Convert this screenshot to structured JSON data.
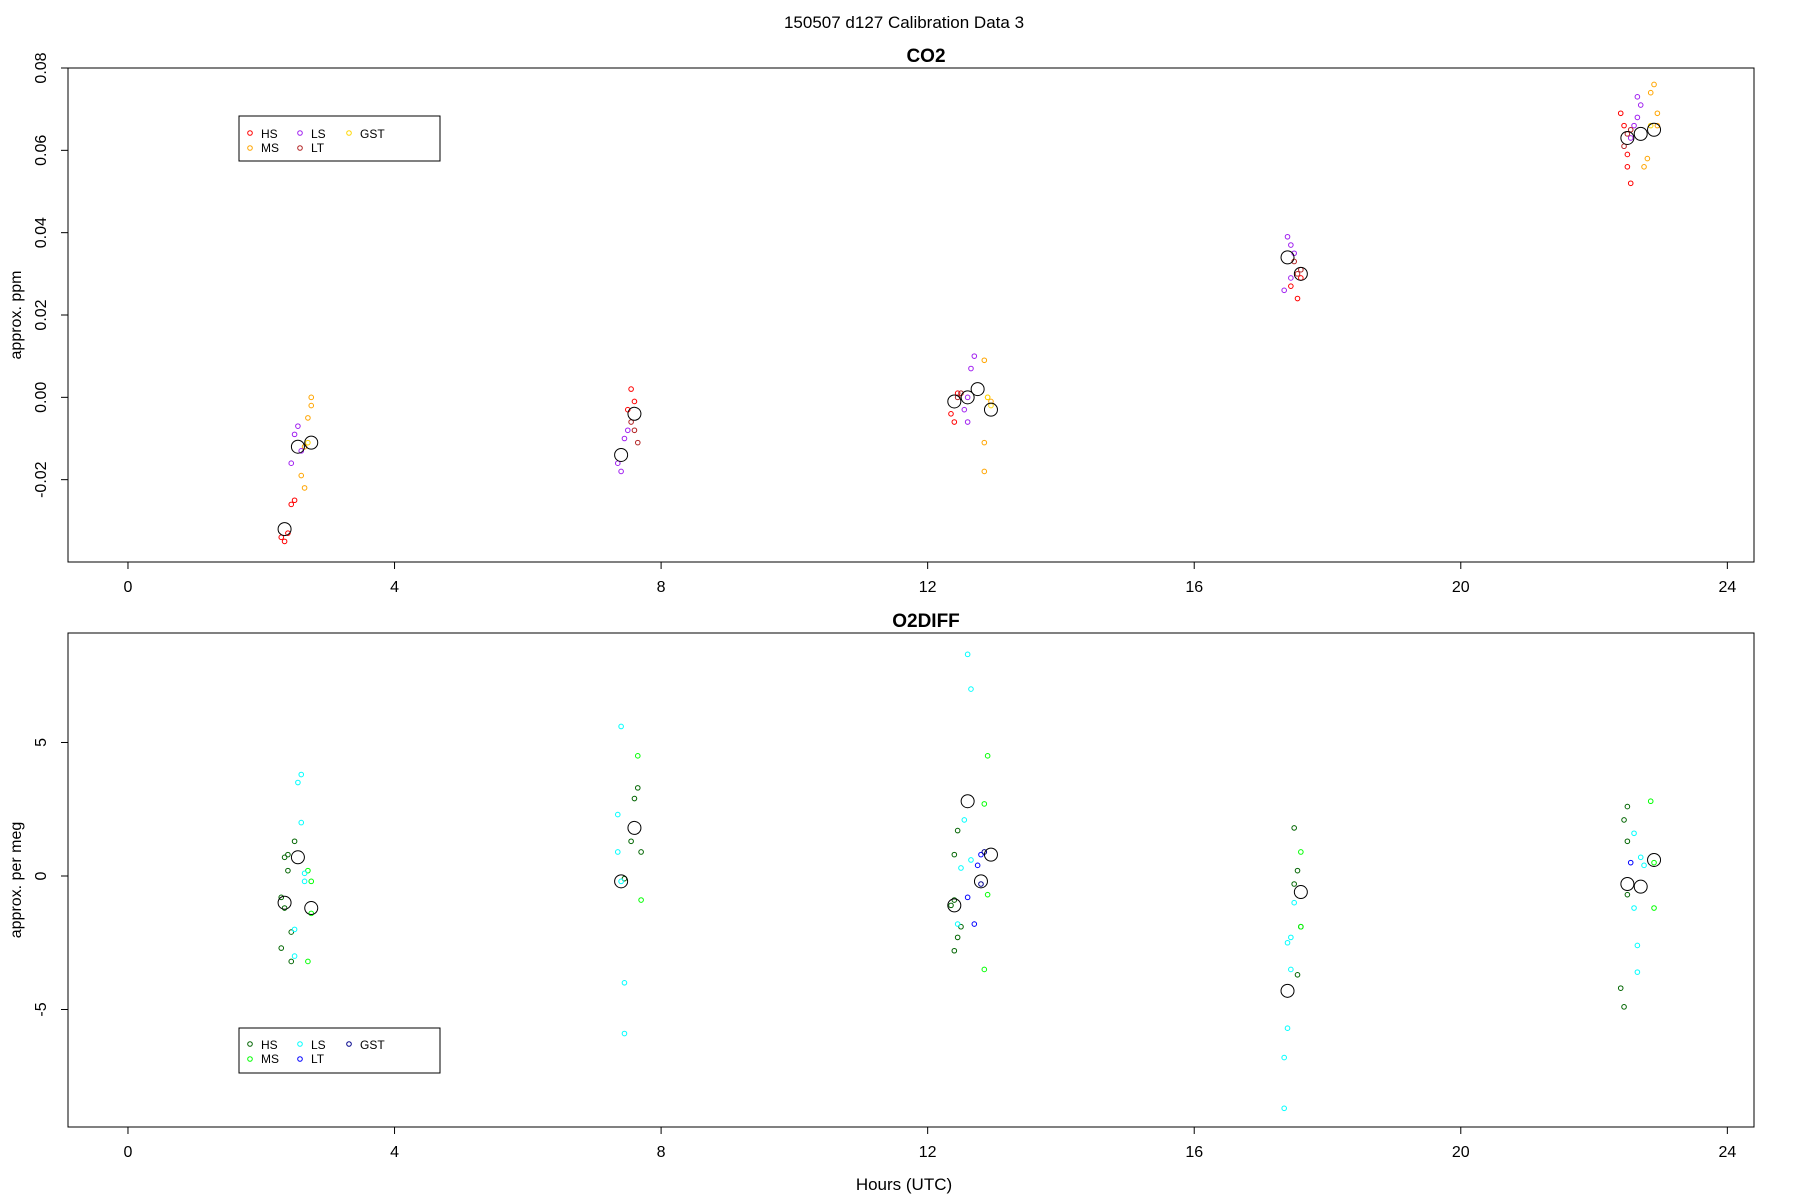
{
  "figure": {
    "title": "150507   d127   Calibration Data 3",
    "xlabel": "Hours (UTC)"
  },
  "colors": {
    "HS_co2": "#ff0000",
    "MS_co2": "#ffa500",
    "LS_co2": "#a020f0",
    "LT_co2": "#b22222",
    "GST_co2": "#ffd700",
    "HS_o2": "#006400",
    "MS_o2": "#00ff00",
    "LS_o2": "#00ffff",
    "LT_o2": "#0000ff",
    "GST_o2": "#00008b",
    "mean": "#000000"
  },
  "chart_data": [
    {
      "type": "scatter",
      "title": "CO2",
      "xlabel": "",
      "ylabel": "approx. ppm",
      "xlim": [
        -0.9,
        24.4
      ],
      "ylim": [
        -0.04,
        0.08
      ],
      "xticks": [
        0,
        4,
        8,
        12,
        16,
        20,
        24
      ],
      "yticks": [
        -0.02,
        0.0,
        0.02,
        0.04,
        0.06,
        0.08
      ],
      "ytick_labels": [
        "-0.02",
        "0.00",
        "0.02",
        "0.04",
        "0.06",
        "0.08"
      ],
      "legend": {
        "placement": "top-left",
        "entries": [
          "HS",
          "MS",
          "LS",
          "LT",
          "GST"
        ]
      },
      "series": [
        {
          "name": "HS",
          "color_key": "HS_co2",
          "points": [
            [
              2.3,
              -0.034
            ],
            [
              2.35,
              -0.035
            ],
            [
              2.4,
              -0.033
            ],
            [
              2.45,
              -0.026
            ],
            [
              2.5,
              -0.025
            ],
            [
              7.5,
              -0.003
            ],
            [
              7.55,
              0.002
            ],
            [
              7.6,
              -0.001
            ],
            [
              12.35,
              -0.004
            ],
            [
              12.4,
              -0.006
            ],
            [
              12.45,
              0.001
            ],
            [
              17.45,
              0.027
            ],
            [
              17.55,
              0.024
            ],
            [
              17.6,
              0.029
            ],
            [
              22.4,
              0.069
            ],
            [
              22.45,
              0.066
            ],
            [
              22.5,
              0.059
            ],
            [
              22.5,
              0.056
            ],
            [
              22.55,
              0.052
            ]
          ]
        },
        {
          "name": "MS",
          "color_key": "MS_co2",
          "points": [
            [
              2.6,
              -0.019
            ],
            [
              2.65,
              -0.022
            ],
            [
              2.65,
              -0.012
            ],
            [
              2.7,
              -0.005
            ],
            [
              2.75,
              -0.002
            ],
            [
              2.75,
              0.0
            ],
            [
              12.85,
              0.009
            ],
            [
              12.85,
              -0.011
            ],
            [
              12.85,
              -0.018
            ],
            [
              12.9,
              0.0
            ],
            [
              12.95,
              -0.001
            ],
            [
              22.75,
              0.056
            ],
            [
              22.8,
              0.058
            ],
            [
              22.85,
              0.074
            ],
            [
              22.9,
              0.076
            ],
            [
              22.95,
              0.066
            ],
            [
              22.95,
              0.069
            ]
          ]
        },
        {
          "name": "LS",
          "color_key": "LS_co2",
          "points": [
            [
              2.45,
              -0.016
            ],
            [
              2.5,
              -0.009
            ],
            [
              2.55,
              -0.007
            ],
            [
              2.6,
              -0.013
            ],
            [
              7.35,
              -0.016
            ],
            [
              7.4,
              -0.018
            ],
            [
              7.45,
              -0.01
            ],
            [
              7.5,
              -0.008
            ],
            [
              12.55,
              -0.003
            ],
            [
              12.6,
              0.0
            ],
            [
              12.65,
              0.007
            ],
            [
              12.7,
              0.01
            ],
            [
              12.6,
              -0.006
            ],
            [
              17.35,
              0.026
            ],
            [
              17.4,
              0.039
            ],
            [
              17.45,
              0.037
            ],
            [
              17.5,
              0.035
            ],
            [
              17.45,
              0.029
            ],
            [
              22.55,
              0.063
            ],
            [
              22.6,
              0.066
            ],
            [
              22.65,
              0.073
            ],
            [
              22.7,
              0.071
            ],
            [
              22.65,
              0.068
            ]
          ]
        },
        {
          "name": "LT",
          "color_key": "LT_co2",
          "points": [
            [
              7.55,
              -0.006
            ],
            [
              7.6,
              -0.008
            ],
            [
              7.65,
              -0.011
            ],
            [
              12.45,
              0.0
            ],
            [
              12.5,
              0.001
            ],
            [
              17.5,
              0.033
            ],
            [
              17.55,
              0.03
            ],
            [
              17.6,
              0.031
            ],
            [
              22.45,
              0.061
            ],
            [
              22.5,
              0.064
            ],
            [
              22.55,
              0.065
            ]
          ]
        },
        {
          "name": "GST",
          "color_key": "GST_co2",
          "points": [
            [
              2.7,
              -0.011
            ],
            [
              12.9,
              0.0
            ],
            [
              12.95,
              -0.002
            ],
            [
              22.85,
              0.066
            ]
          ]
        }
      ],
      "means": [
        [
          2.35,
          -0.032
        ],
        [
          2.55,
          -0.012
        ],
        [
          2.75,
          -0.011
        ],
        [
          7.4,
          -0.014
        ],
        [
          7.6,
          -0.004
        ],
        [
          12.4,
          -0.001
        ],
        [
          12.6,
          0.0
        ],
        [
          12.75,
          0.002
        ],
        [
          12.95,
          -0.003
        ],
        [
          17.4,
          0.034
        ],
        [
          17.6,
          0.03
        ],
        [
          22.5,
          0.063
        ],
        [
          22.7,
          0.064
        ],
        [
          22.9,
          0.065
        ]
      ]
    },
    {
      "type": "scatter",
      "title": "O2DIFF",
      "xlabel": "Hours (UTC)",
      "ylabel": "approx. per meg",
      "xlim": [
        -0.9,
        24.4
      ],
      "ylim": [
        -9.4,
        9.1
      ],
      "xticks": [
        0,
        4,
        8,
        12,
        16,
        20,
        24
      ],
      "yticks": [
        -5,
        0,
        5
      ],
      "ytick_labels": [
        "-5",
        "0",
        "5"
      ],
      "legend": {
        "placement": "bottom-left",
        "entries": [
          "HS",
          "MS",
          "LS",
          "LT",
          "GST"
        ]
      },
      "series": [
        {
          "name": "HS",
          "color_key": "HS_o2",
          "points": [
            [
              2.3,
              -0.8
            ],
            [
              2.35,
              -1.2
            ],
            [
              2.35,
              0.7
            ],
            [
              2.4,
              0.8
            ],
            [
              2.4,
              0.2
            ],
            [
              2.45,
              -2.1
            ],
            [
              2.45,
              -3.2
            ],
            [
              2.5,
              1.3
            ],
            [
              2.3,
              -2.7
            ],
            [
              7.45,
              -0.1
            ],
            [
              7.55,
              1.3
            ],
            [
              7.6,
              2.9
            ],
            [
              7.65,
              3.3
            ],
            [
              7.7,
              0.9
            ],
            [
              12.35,
              -1.1
            ],
            [
              12.4,
              -2.8
            ],
            [
              12.4,
              -0.9
            ],
            [
              12.45,
              -2.3
            ],
            [
              12.5,
              -1.9
            ],
            [
              12.45,
              1.7
            ],
            [
              12.4,
              0.8
            ],
            [
              17.5,
              1.8
            ],
            [
              17.55,
              0.2
            ],
            [
              17.5,
              -0.3
            ],
            [
              17.55,
              -3.7
            ],
            [
              17.6,
              -1.9
            ],
            [
              22.4,
              -4.2
            ],
            [
              22.45,
              -4.9
            ],
            [
              22.45,
              2.1
            ],
            [
              22.5,
              2.6
            ],
            [
              22.5,
              1.3
            ],
            [
              22.5,
              -0.7
            ]
          ]
        },
        {
          "name": "MS",
          "color_key": "MS_o2",
          "points": [
            [
              2.7,
              0.2
            ],
            [
              2.75,
              -1.4
            ],
            [
              2.7,
              -3.2
            ],
            [
              2.75,
              -0.2
            ],
            [
              7.65,
              4.5
            ],
            [
              7.7,
              -0.9
            ],
            [
              12.85,
              2.7
            ],
            [
              12.9,
              4.5
            ],
            [
              12.85,
              -3.5
            ],
            [
              12.9,
              -0.7
            ],
            [
              17.6,
              0.9
            ],
            [
              17.6,
              -1.9
            ],
            [
              22.85,
              2.8
            ],
            [
              22.9,
              -1.2
            ],
            [
              22.9,
              0.5
            ]
          ]
        },
        {
          "name": "LS",
          "color_key": "LS_o2",
          "points": [
            [
              2.55,
              3.5
            ],
            [
              2.6,
              3.8
            ],
            [
              2.6,
              2.0
            ],
            [
              2.65,
              0.1
            ],
            [
              2.65,
              -0.2
            ],
            [
              2.5,
              -2.0
            ],
            [
              2.5,
              -3.0
            ],
            [
              7.35,
              0.9
            ],
            [
              7.35,
              2.3
            ],
            [
              7.4,
              5.6
            ],
            [
              7.45,
              -4.0
            ],
            [
              7.45,
              -5.9
            ],
            [
              7.4,
              -0.2
            ],
            [
              12.6,
              8.3
            ],
            [
              12.65,
              7.0
            ],
            [
              12.55,
              2.1
            ],
            [
              12.5,
              0.3
            ],
            [
              12.45,
              -1.8
            ],
            [
              12.65,
              0.6
            ],
            [
              17.35,
              -6.8
            ],
            [
              17.35,
              -8.7
            ],
            [
              17.4,
              -5.7
            ],
            [
              17.4,
              -2.5
            ],
            [
              17.45,
              -2.3
            ],
            [
              17.45,
              -3.5
            ],
            [
              17.5,
              -1.0
            ],
            [
              22.6,
              1.6
            ],
            [
              22.6,
              -1.2
            ],
            [
              22.65,
              -2.6
            ],
            [
              22.65,
              -3.6
            ],
            [
              22.7,
              0.7
            ],
            [
              22.75,
              0.4
            ]
          ]
        },
        {
          "name": "LT",
          "color_key": "LT_o2",
          "points": [
            [
              12.6,
              -0.8
            ],
            [
              12.7,
              -1.8
            ],
            [
              12.75,
              0.4
            ],
            [
              12.8,
              0.8
            ],
            [
              22.55,
              0.5
            ]
          ]
        },
        {
          "name": "GST",
          "color_key": "GST_o2",
          "points": [
            [
              12.8,
              -0.3
            ],
            [
              12.85,
              0.9
            ]
          ]
        }
      ],
      "means": [
        [
          2.35,
          -1.0
        ],
        [
          2.55,
          0.7
        ],
        [
          2.75,
          -1.2
        ],
        [
          7.4,
          -0.2
        ],
        [
          7.6,
          1.8
        ],
        [
          12.4,
          -1.1
        ],
        [
          12.6,
          2.8
        ],
        [
          12.8,
          -0.2
        ],
        [
          12.95,
          0.8
        ],
        [
          17.4,
          -4.3
        ],
        [
          17.6,
          -0.6
        ],
        [
          22.5,
          -0.3
        ],
        [
          22.7,
          -0.4
        ],
        [
          22.9,
          0.6
        ]
      ]
    }
  ]
}
